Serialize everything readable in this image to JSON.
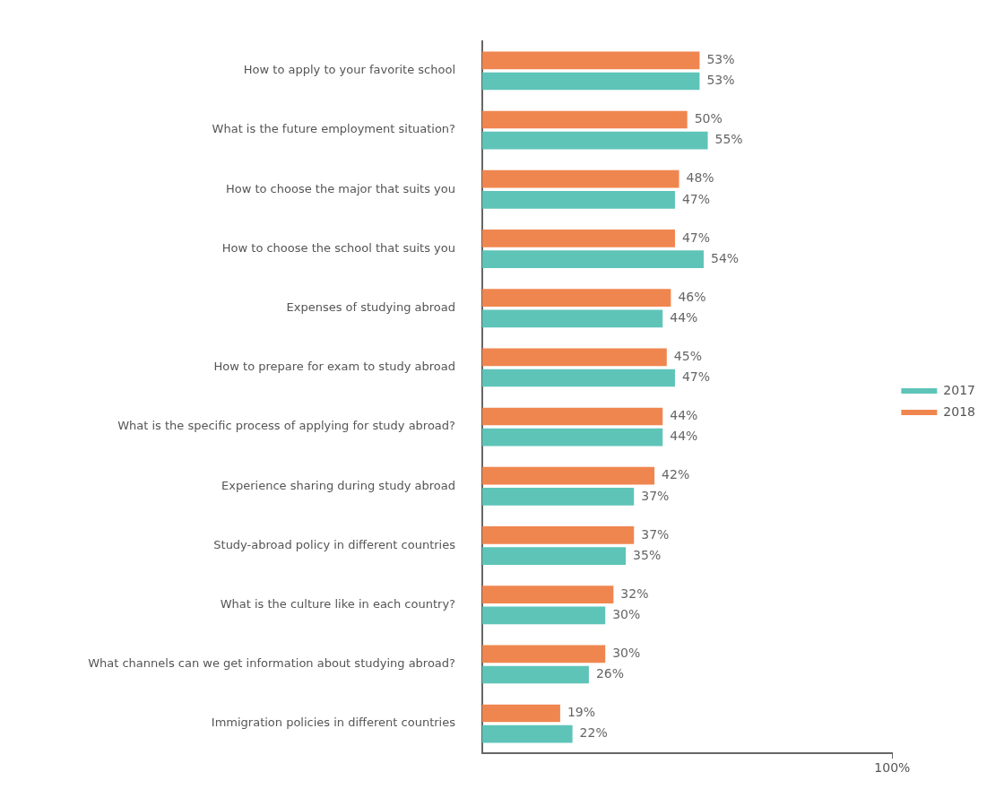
{
  "chart_data": {
    "type": "bar",
    "orientation": "horizontal",
    "categories": [
      "How to apply to your favorite school",
      "What is the future employment situation?",
      "How to choose the major that suits you",
      "How to choose the school that suits you",
      "Expenses of studying abroad",
      "How to prepare for exam to study abroad",
      "What is the specific process of applying for study abroad?",
      "Experience sharing during study abroad",
      "Study-abroad policy in different countries",
      "What is the culture like in each country?",
      "What channels can we get information about studying abroad?",
      "Immigration policies in different countries"
    ],
    "series": [
      {
        "name": "2018",
        "color": "#f0864f",
        "values": [
          53,
          50,
          48,
          47,
          46,
          45,
          44,
          42,
          37,
          32,
          30,
          19
        ],
        "value_labels": [
          "53%",
          "50%",
          "48%",
          "47%",
          "46%",
          "45%",
          "44%",
          "42%",
          "37%",
          "32%",
          "30%",
          "19%"
        ]
      },
      {
        "name": "2017",
        "color": "#5ec4b8",
        "values": [
          53,
          55,
          47,
          54,
          44,
          47,
          44,
          37,
          35,
          30,
          26,
          22
        ],
        "value_labels": [
          "53%",
          "55%",
          "47%",
          "54%",
          "44%",
          "47%",
          "44%",
          "37%",
          "35%",
          "30%",
          "26%",
          "22%"
        ]
      }
    ],
    "xlim": [
      0,
      100
    ],
    "xticks": [
      {
        "value": 100,
        "label": "100%"
      }
    ],
    "grid": false,
    "legend": "right"
  }
}
